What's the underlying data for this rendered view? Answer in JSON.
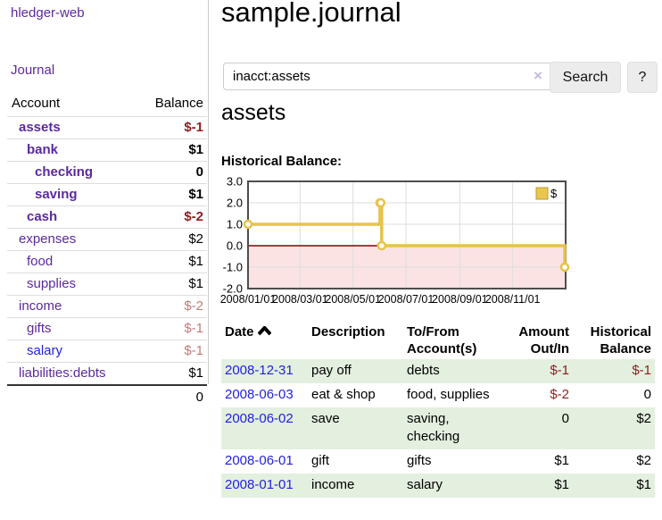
{
  "app": {
    "brand": "hledger-web"
  },
  "sidebar": {
    "nav_journal": "Journal",
    "columns": {
      "account": "Account",
      "balance": "Balance"
    },
    "accounts": [
      {
        "name": "assets",
        "depth": 1,
        "bold": true,
        "balance": "$-1",
        "tone": "neg-strong",
        "link_tone": "purple"
      },
      {
        "name": "bank",
        "depth": 2,
        "bold": true,
        "balance": "$1",
        "tone": "pos",
        "link_tone": "purple"
      },
      {
        "name": "checking",
        "depth": 3,
        "bold": true,
        "balance": "0",
        "tone": "pos",
        "link_tone": "purple"
      },
      {
        "name": "saving",
        "depth": 3,
        "bold": true,
        "balance": "$1",
        "tone": "pos",
        "link_tone": "purple"
      },
      {
        "name": "cash",
        "depth": 2,
        "bold": true,
        "balance": "$-2",
        "tone": "neg-strong",
        "link_tone": "purple"
      },
      {
        "name": "expenses",
        "depth": 1,
        "bold": false,
        "balance": "$2",
        "tone": "pos",
        "link_tone": "purple"
      },
      {
        "name": "food",
        "depth": 2,
        "bold": false,
        "balance": "$1",
        "tone": "pos",
        "link_tone": "purple"
      },
      {
        "name": "supplies",
        "depth": 2,
        "bold": false,
        "balance": "$1",
        "tone": "pos",
        "link_tone": "purple"
      },
      {
        "name": "income",
        "depth": 1,
        "bold": false,
        "balance": "$-2",
        "tone": "neg-faded",
        "link_tone": "purple"
      },
      {
        "name": "gifts",
        "depth": 2,
        "bold": false,
        "balance": "$-1",
        "tone": "neg-faded",
        "link_tone": "purple"
      },
      {
        "name": "salary",
        "depth": 2,
        "bold": false,
        "balance": "$-1",
        "tone": "neg-faded",
        "link_tone": "blue"
      },
      {
        "name": "liabilities:debts",
        "depth": 1,
        "bold": false,
        "balance": "$1",
        "tone": "pos",
        "link_tone": "purple"
      }
    ],
    "total": "0"
  },
  "header": {
    "title": "sample.journal"
  },
  "search": {
    "value": "inacct:assets",
    "clear_icon": "×",
    "button_label": "Search",
    "help_label": "?"
  },
  "account_page": {
    "title": "assets",
    "chart_label": "Historical Balance:"
  },
  "chart_data": {
    "type": "line",
    "subtype": "step",
    "title": "Historical Balance",
    "series": [
      {
        "name": "$",
        "color": "#e6c34a",
        "points": [
          {
            "date": "2008-01-01",
            "value": 1
          },
          {
            "date": "2008-06-01",
            "value": 2
          },
          {
            "date": "2008-06-02",
            "value": 2
          },
          {
            "date": "2008-06-03",
            "value": 0
          },
          {
            "date": "2008-12-31",
            "value": -1
          }
        ]
      }
    ],
    "x_domain": [
      "2008-01-01",
      "2009-01-01"
    ],
    "x_ticks": [
      "2008/01/01",
      "2008/03/01",
      "2008/05/01",
      "2008/07/01",
      "2008/09/01",
      "2008/11/01"
    ],
    "y_ticks": [
      3.0,
      2.0,
      1.0,
      0.0,
      -1.0,
      -2.0
    ],
    "ylim": [
      -2,
      3
    ],
    "grid": true,
    "legend": {
      "label": "$",
      "position": "top-right",
      "swatch_color": "#e9c74f",
      "swatch_border": "#b89b2e"
    },
    "zero_line_color": "#8b0000",
    "negative_region_color": "#fbe3e3",
    "grid_color": "#dddddd",
    "border_color": "#4d4d4d"
  },
  "transactions": {
    "headers": {
      "date": "Date",
      "description": "Description",
      "accounts": "To/From Account(s)",
      "amount": "Amount Out/In",
      "balance": "Historical Balance"
    },
    "rows": [
      {
        "date": "2008-12-31",
        "description": "pay off",
        "accounts": "debts",
        "amount": "$-1",
        "balance": "$-1"
      },
      {
        "date": "2008-06-03",
        "description": "eat & shop",
        "accounts": "food, supplies",
        "amount": "$-2",
        "balance": "0"
      },
      {
        "date": "2008-06-02",
        "description": "save",
        "accounts": "saving, checking",
        "amount": "0",
        "balance": "$2"
      },
      {
        "date": "2008-06-01",
        "description": "gift",
        "accounts": "gifts",
        "amount": "$1",
        "balance": "$2"
      },
      {
        "date": "2008-01-01",
        "description": "income",
        "accounts": "salary",
        "amount": "$1",
        "balance": "$1"
      }
    ]
  }
}
